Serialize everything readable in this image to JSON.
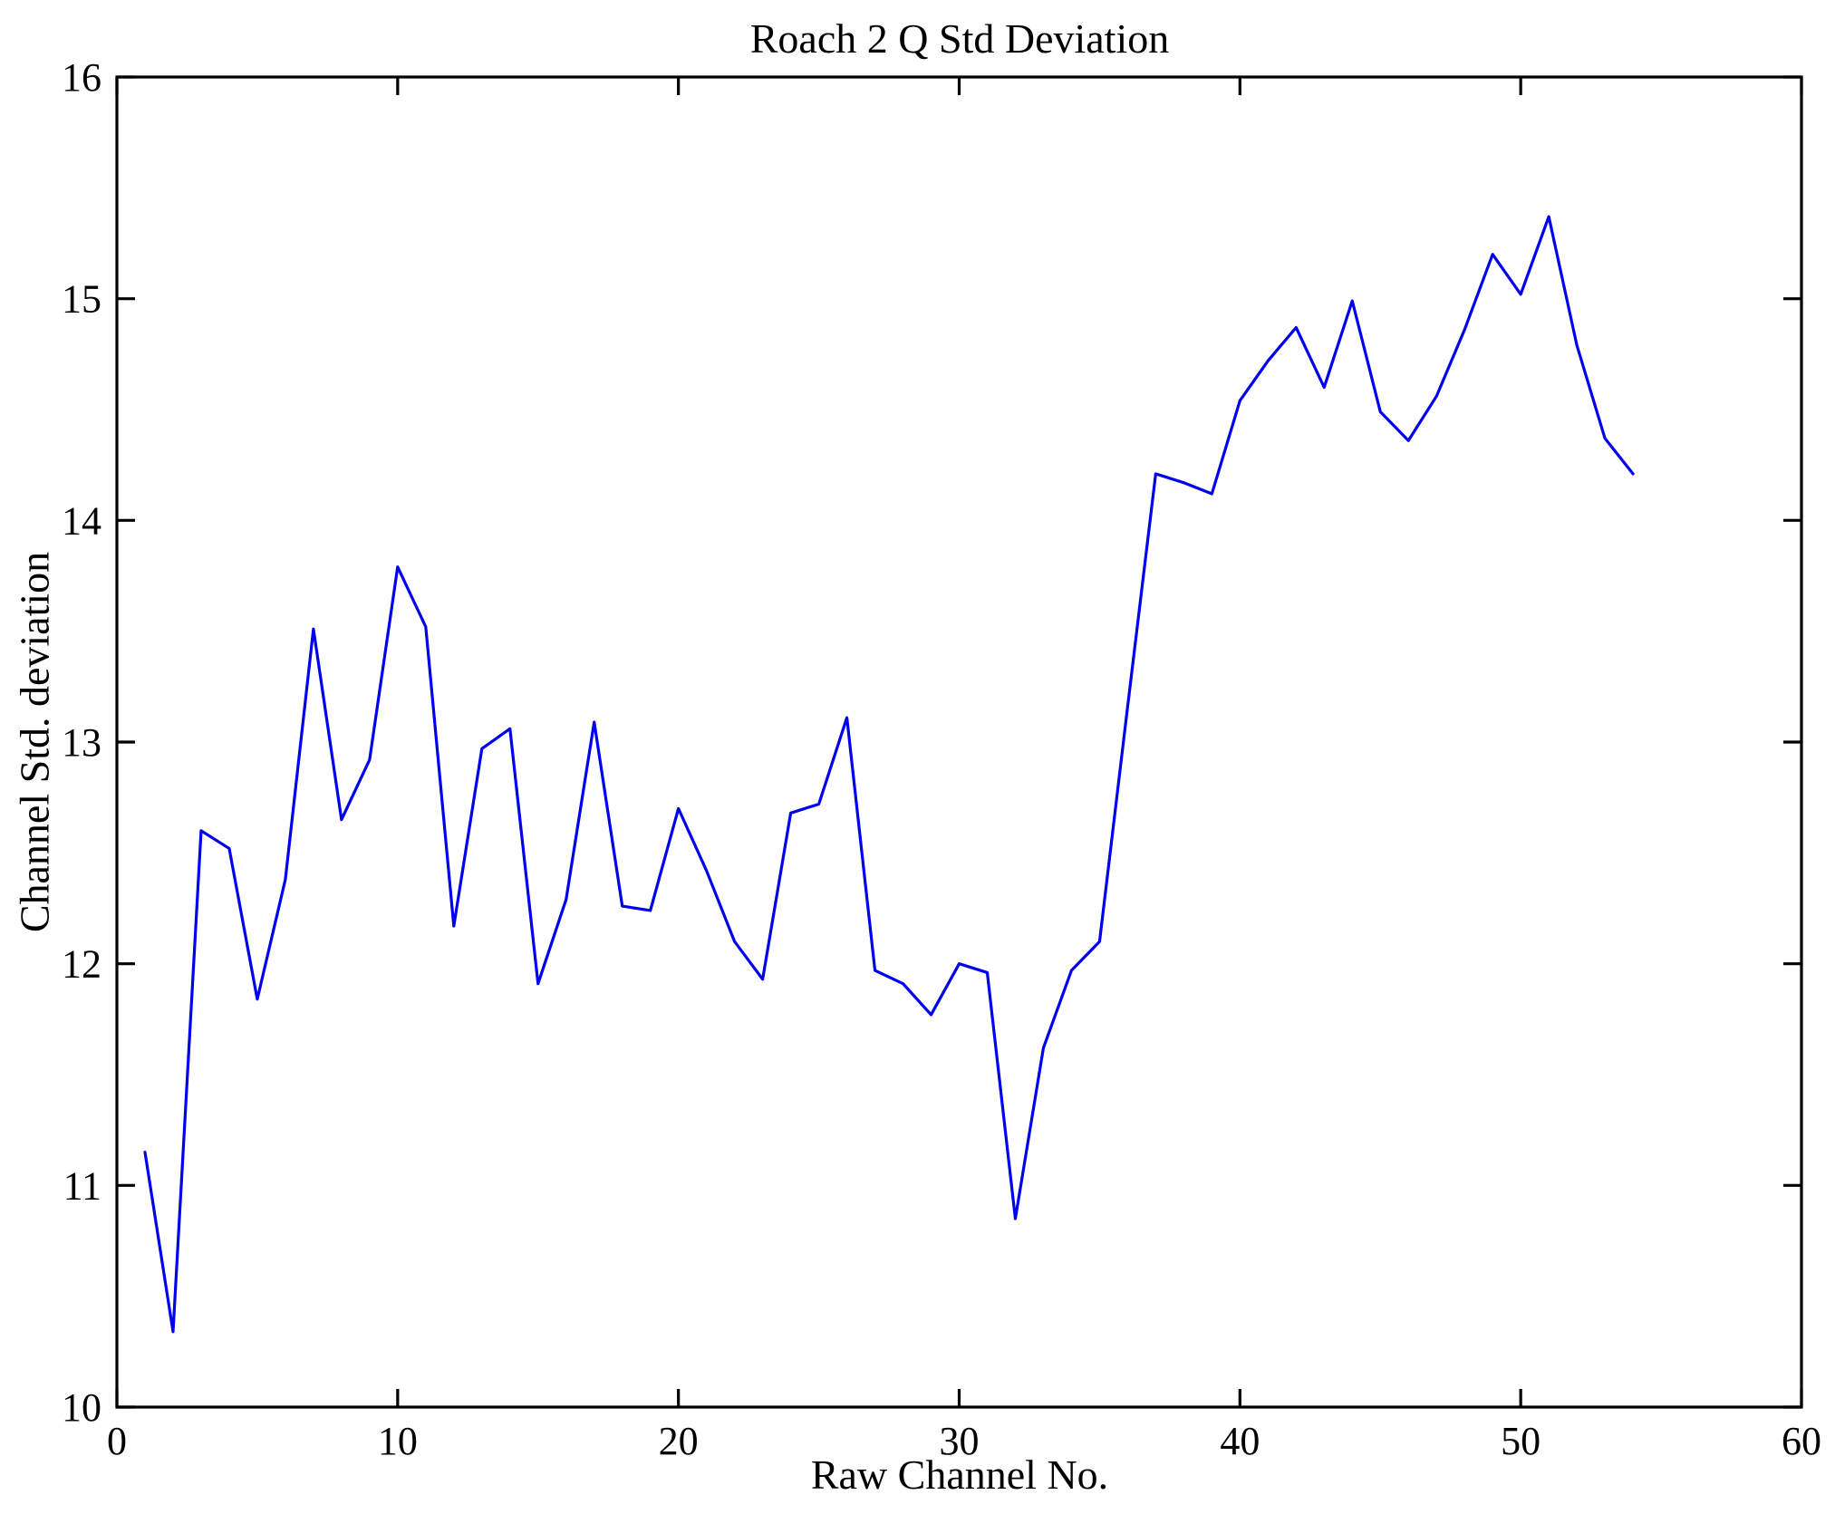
{
  "chart_data": {
    "type": "line",
    "title": "Roach 2 Q Std Deviation",
    "xlabel": "Raw Channel No.",
    "ylabel": "Channel Std. deviation",
    "xlim": [
      0,
      60
    ],
    "ylim": [
      10,
      16
    ],
    "xticks": [
      0,
      10,
      20,
      30,
      40,
      50,
      60
    ],
    "yticks": [
      10,
      11,
      12,
      13,
      14,
      15,
      16
    ],
    "grid": false,
    "legend": null,
    "line_color": "#0000ee",
    "axis_color": "#000000",
    "background_color": "#ffffff",
    "x": [
      1,
      2,
      3,
      4,
      5,
      6,
      7,
      8,
      9,
      10,
      11,
      12,
      13,
      14,
      15,
      16,
      17,
      18,
      19,
      20,
      21,
      22,
      23,
      24,
      25,
      26,
      27,
      28,
      29,
      30,
      31,
      32,
      33,
      34,
      35,
      36,
      37,
      38,
      39,
      40,
      41,
      42,
      43,
      44,
      45,
      46,
      47,
      48,
      49,
      50,
      51,
      52,
      53,
      54
    ],
    "values": [
      11.15,
      10.34,
      12.6,
      12.52,
      11.84,
      12.38,
      13.51,
      12.65,
      12.92,
      13.79,
      13.52,
      12.17,
      12.97,
      13.06,
      11.91,
      12.29,
      13.09,
      12.26,
      12.24,
      12.7,
      12.42,
      12.1,
      11.93,
      12.68,
      12.72,
      13.11,
      11.97,
      11.91,
      11.77,
      12.0,
      11.96,
      10.85,
      11.62,
      11.97,
      12.1,
      13.16,
      14.21,
      14.17,
      14.12,
      14.54,
      14.72,
      14.87,
      14.6,
      14.99,
      14.49,
      14.36,
      14.56,
      14.86,
      15.2,
      15.02,
      15.37,
      14.79,
      14.37,
      14.21
    ]
  }
}
